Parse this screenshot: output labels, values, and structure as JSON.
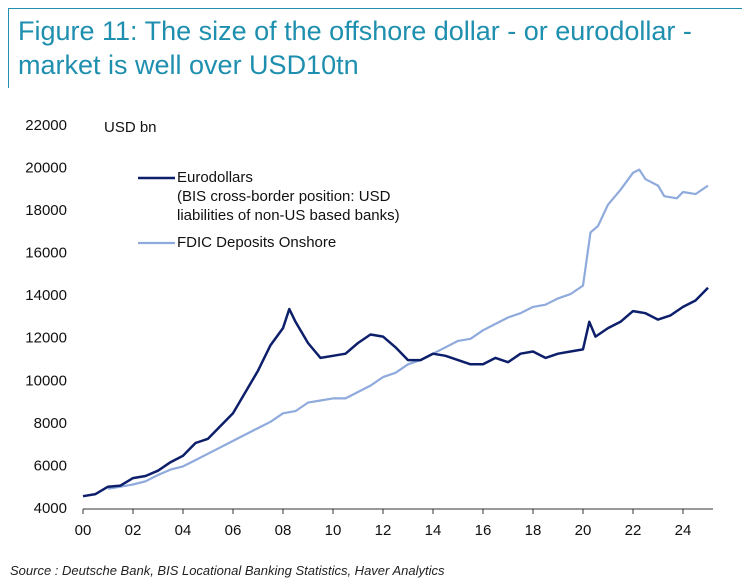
{
  "chart_data": {
    "type": "line",
    "title": "Figure 11: The size of the offshore dollar - or eurodollar - market is well over USD10tn",
    "y_label": "USD bn",
    "source": "Source : Deutsche Bank, BIS Locational Banking Statistics, Haver Analytics",
    "xlim": [
      0,
      25.2
    ],
    "ylim": [
      4000,
      22000
    ],
    "xticks": [
      {
        "value": 0,
        "label": "00"
      },
      {
        "value": 2,
        "label": "02"
      },
      {
        "value": 4,
        "label": "04"
      },
      {
        "value": 6,
        "label": "06"
      },
      {
        "value": 8,
        "label": "08"
      },
      10,
      12,
      14,
      16,
      18,
      20,
      22,
      24
    ],
    "yticks": [
      4000,
      6000,
      8000,
      10000,
      12000,
      14000,
      16000,
      18000,
      20000,
      22000
    ],
    "grid": false,
    "series": [
      {
        "name": "Eurodollars",
        "legend_note": [
          "(BIS cross-border position: USD",
          "liabilities of non-US based banks)"
        ],
        "color": "#0d1f6b",
        "x": [
          0,
          0.5,
          1,
          1.5,
          2,
          2.5,
          3,
          3.5,
          4,
          4.5,
          5,
          5.5,
          6,
          6.5,
          7,
          7.5,
          8,
          8.25,
          8.5,
          9,
          9.5,
          10,
          10.5,
          11,
          11.5,
          12,
          12.5,
          13,
          13.5,
          14,
          14.5,
          15,
          15.5,
          16,
          16.5,
          17,
          17.5,
          18,
          18.5,
          19,
          19.5,
          20,
          20.25,
          20.5,
          21,
          21.5,
          22,
          22.5,
          23,
          23.5,
          24,
          24.5,
          25
        ],
        "values": [
          4600,
          4700,
          5050,
          5100,
          5450,
          5550,
          5800,
          6200,
          6500,
          7100,
          7300,
          7900,
          8500,
          9500,
          10500,
          11700,
          12500,
          13400,
          12800,
          11800,
          11100,
          11200,
          11300,
          11800,
          12200,
          12100,
          11600,
          11000,
          11000,
          11300,
          11200,
          11000,
          10800,
          10800,
          11100,
          10900,
          11300,
          11400,
          11100,
          11300,
          11400,
          11500,
          12800,
          12100,
          12500,
          12800,
          13300,
          13200,
          12900,
          13100,
          13500,
          13800,
          14400
        ]
      },
      {
        "name": "FDIC Deposits Onshore",
        "color": "#8faadc",
        "x": [
          1,
          1.5,
          2,
          2.5,
          3,
          3.5,
          4,
          4.5,
          5,
          5.5,
          6,
          6.5,
          7,
          7.5,
          8,
          8.5,
          9,
          9.5,
          10,
          10.5,
          11,
          11.5,
          12,
          12.5,
          13,
          13.5,
          14,
          14.5,
          15,
          15.5,
          16,
          16.5,
          17,
          17.5,
          18,
          18.5,
          19,
          19.5,
          20,
          20.3,
          20.6,
          21,
          21.5,
          22,
          22.25,
          22.5,
          23,
          23.25,
          23.75,
          24,
          24.5,
          25
        ],
        "values": [
          4950,
          5050,
          5150,
          5300,
          5600,
          5850,
          6000,
          6300,
          6600,
          6900,
          7200,
          7500,
          7800,
          8100,
          8500,
          8600,
          9000,
          9100,
          9200,
          9200,
          9500,
          9800,
          10200,
          10400,
          10800,
          11000,
          11300,
          11600,
          11900,
          12000,
          12400,
          12700,
          13000,
          13200,
          13500,
          13600,
          13900,
          14100,
          14500,
          17000,
          17300,
          18300,
          19000,
          19800,
          19950,
          19500,
          19200,
          18700,
          18600,
          18900,
          18800,
          19200
        ]
      }
    ]
  }
}
